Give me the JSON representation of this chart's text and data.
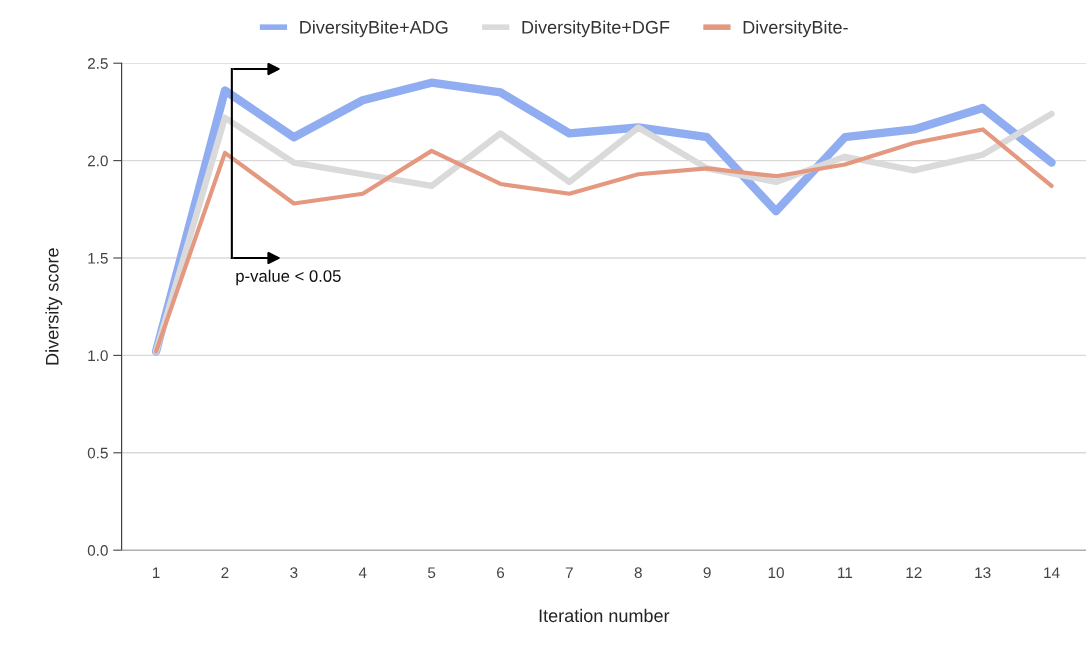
{
  "chart_data": {
    "type": "line",
    "categories": [
      "1",
      "2",
      "3",
      "4",
      "5",
      "6",
      "7",
      "8",
      "9",
      "10",
      "11",
      "12",
      "13",
      "14"
    ],
    "series": [
      {
        "name": "DiversityBite+ADG",
        "color": "#8fadf0",
        "values": [
          1.02,
          2.36,
          2.12,
          2.31,
          2.4,
          2.35,
          2.14,
          2.17,
          2.12,
          1.74,
          2.12,
          2.16,
          2.27,
          1.99
        ]
      },
      {
        "name": "DiversityBite+DGF",
        "color": "#dadada",
        "values": [
          1.02,
          2.22,
          1.99,
          1.93,
          1.87,
          2.14,
          1.89,
          2.17,
          1.96,
          1.89,
          2.02,
          1.95,
          2.03,
          2.24
        ]
      },
      {
        "name": "DiversityBite-",
        "color": "#e49880",
        "values": [
          1.02,
          2.04,
          1.78,
          1.83,
          2.05,
          1.88,
          1.83,
          1.93,
          1.96,
          1.92,
          1.98,
          2.09,
          2.16,
          1.87
        ]
      }
    ],
    "xlabel": "Iteration number",
    "ylabel": "Diversity score",
    "ylim": [
      0,
      2.5
    ],
    "yticks": [
      {
        "value": 0,
        "label": "0.0"
      },
      {
        "value": 0.5,
        "label": "0.5"
      },
      {
        "value": 1,
        "label": "1.0"
      },
      {
        "value": 1.5,
        "label": "1.5"
      },
      {
        "value": 2,
        "label": "2.0"
      },
      {
        "value": 2.5,
        "label": "2.5"
      }
    ],
    "grid": "y",
    "legend": "top",
    "marker": "none",
    "line_style": "solid",
    "annotations": [
      "p-value < 0.05"
    ]
  }
}
